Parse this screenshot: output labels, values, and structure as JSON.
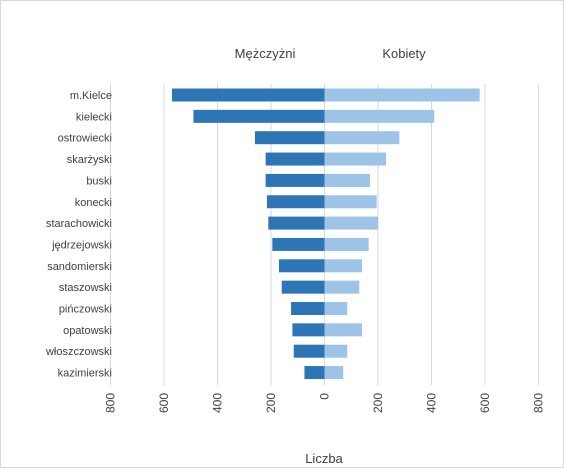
{
  "chart_data": {
    "type": "bar",
    "orientation": "horizontal",
    "layout": "population-pyramid",
    "categories": [
      "m.Kielce",
      "kielecki",
      "ostrowiecki",
      "skarżyski",
      "buski",
      "konecki",
      "starachowicki",
      "jędrzejowski",
      "sandomierski",
      "staszowski",
      "pińczowski",
      "opatowski",
      "włoszczowski",
      "kazimierski"
    ],
    "series": [
      {
        "name": "Mężczyżni",
        "side": "left",
        "color": "#2e75b6",
        "values": [
          570,
          490,
          260,
          220,
          220,
          215,
          210,
          195,
          170,
          160,
          125,
          120,
          115,
          75
        ]
      },
      {
        "name": "Kobiety",
        "side": "right",
        "color": "#9dc3e6",
        "values": [
          580,
          410,
          280,
          230,
          170,
          195,
          200,
          165,
          140,
          130,
          85,
          140,
          85,
          70
        ]
      }
    ],
    "xlabel": "Liczba",
    "xlim": [
      -800,
      800
    ],
    "xticks": [
      "800",
      "600",
      "400",
      "200",
      "0",
      "200",
      "400",
      "600",
      "800"
    ],
    "grid": true,
    "legend_position": "top"
  }
}
